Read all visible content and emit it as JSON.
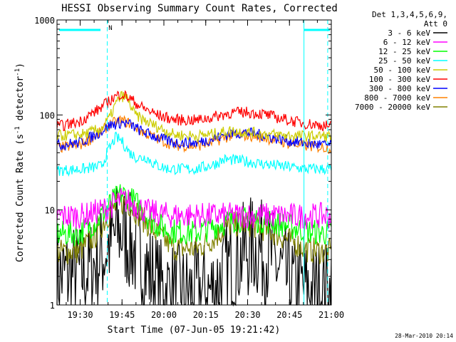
{
  "chart_data": {
    "type": "line",
    "title": "HESSI Observing Summary Count Rates, Corrected",
    "xlabel": "Start Time (07-Jun-05 19:21:42)",
    "ylabel_main": "Corrected Count Rate (s",
    "ylabel_sup1": "-1",
    "ylabel_mid": " detector",
    "ylabel_sup2": "-1",
    "ylabel_end": ")",
    "y_scale": "log",
    "ylim": [
      1,
      1000
    ],
    "xlim": [
      "19:21:42",
      "21:00:00"
    ],
    "x_ticks": [
      "19:30",
      "19:45",
      "20:00",
      "20:15",
      "20:30",
      "20:45",
      "21:00"
    ],
    "y_ticks": [
      "1",
      "10",
      "100",
      "1000"
    ],
    "legend_header": [
      "Det 1,3,4,5,6,9,",
      "Att 0"
    ],
    "legend_position": "right-outside",
    "footer_date": "28-Mar-2010 20:14",
    "night_flag_label": "N",
    "series": [
      {
        "name": "3 - 6 keV",
        "color": "#000000",
        "points": [
          [
            0,
            2.0
          ],
          [
            10,
            2.2
          ],
          [
            16,
            3.2
          ],
          [
            22,
            6.0
          ],
          [
            24,
            5.5
          ],
          [
            30,
            3.0
          ],
          [
            37,
            1.5
          ],
          [
            45,
            1.3
          ],
          [
            55,
            1.4
          ],
          [
            63,
            2.8
          ],
          [
            70,
            4.2
          ],
          [
            76,
            3.3
          ],
          [
            84,
            1.6
          ],
          [
            92,
            1.4
          ],
          [
            98,
            1.4
          ]
        ]
      },
      {
        "name": "6 - 12 keV",
        "color": "#ff00ff",
        "points": [
          [
            0,
            8.6
          ],
          [
            10,
            8.7
          ],
          [
            18,
            10.5
          ],
          [
            23,
            12.8
          ],
          [
            26,
            12.2
          ],
          [
            32,
            9.6
          ],
          [
            40,
            8.8
          ],
          [
            55,
            8.7
          ],
          [
            70,
            8.8
          ],
          [
            85,
            8.6
          ],
          [
            98,
            8.7
          ]
        ]
      },
      {
        "name": "12 - 25 keV",
        "color": "#00ff00",
        "points": [
          [
            0,
            5.6
          ],
          [
            8,
            5.7
          ],
          [
            14,
            7.5
          ],
          [
            19,
            11.5
          ],
          [
            23,
            14.8
          ],
          [
            26,
            13.5
          ],
          [
            30,
            10.5
          ],
          [
            34,
            7.6
          ],
          [
            40,
            6.0
          ],
          [
            50,
            5.8
          ],
          [
            58,
            7.0
          ],
          [
            64,
            8.0
          ],
          [
            70,
            8.0
          ],
          [
            76,
            7.6
          ],
          [
            82,
            6.9
          ],
          [
            90,
            5.9
          ],
          [
            98,
            5.7
          ]
        ]
      },
      {
        "name": "25 - 50 keV",
        "color": "#00ffff",
        "points": [
          [
            0,
            26
          ],
          [
            10,
            27
          ],
          [
            16,
            29
          ],
          [
            18,
            40
          ],
          [
            21,
            58
          ],
          [
            23,
            54
          ],
          [
            26,
            40
          ],
          [
            29,
            35
          ],
          [
            32,
            36
          ],
          [
            35,
            30
          ],
          [
            40,
            27
          ],
          [
            50,
            27
          ],
          [
            56,
            30
          ],
          [
            60,
            34
          ],
          [
            66,
            33
          ],
          [
            72,
            31
          ],
          [
            80,
            29
          ],
          [
            90,
            27
          ],
          [
            98,
            27
          ]
        ]
      },
      {
        "name": "50 - 100 keV",
        "color": "#cccc00",
        "points": [
          [
            0,
            60
          ],
          [
            10,
            63
          ],
          [
            16,
            72
          ],
          [
            19,
            95
          ],
          [
            21,
            130
          ],
          [
            23,
            158
          ],
          [
            25,
            152
          ],
          [
            28,
            100
          ],
          [
            31,
            88
          ],
          [
            36,
            75
          ],
          [
            42,
            62
          ],
          [
            50,
            60
          ],
          [
            56,
            63
          ],
          [
            62,
            68
          ],
          [
            68,
            66
          ],
          [
            74,
            63
          ],
          [
            82,
            61
          ],
          [
            90,
            60
          ],
          [
            98,
            60
          ]
        ]
      },
      {
        "name": "100 - 300 keV",
        "color": "#ff0000",
        "points": [
          [
            0,
            75
          ],
          [
            8,
            85
          ],
          [
            15,
            115
          ],
          [
            20,
            150
          ],
          [
            23,
            168
          ],
          [
            26,
            150
          ],
          [
            30,
            122
          ],
          [
            36,
            100
          ],
          [
            42,
            89
          ],
          [
            50,
            88
          ],
          [
            56,
            95
          ],
          [
            62,
            105
          ],
          [
            68,
            107
          ],
          [
            74,
            102
          ],
          [
            80,
            92
          ],
          [
            88,
            82
          ],
          [
            98,
            76
          ]
        ]
      },
      {
        "name": "300 - 800 keV",
        "color": "#0000ff",
        "points": [
          [
            0,
            48
          ],
          [
            8,
            51
          ],
          [
            14,
            62
          ],
          [
            19,
            78
          ],
          [
            23,
            83
          ],
          [
            26,
            80
          ],
          [
            30,
            68
          ],
          [
            36,
            58
          ],
          [
            42,
            51
          ],
          [
            50,
            51
          ],
          [
            56,
            56
          ],
          [
            62,
            64
          ],
          [
            68,
            65
          ],
          [
            74,
            61
          ],
          [
            82,
            54
          ],
          [
            90,
            50
          ],
          [
            98,
            48
          ]
        ]
      },
      {
        "name": "800 - 7000 keV",
        "color": "#ff8000",
        "points": [
          [
            0,
            45
          ],
          [
            8,
            48
          ],
          [
            14,
            60
          ],
          [
            19,
            80
          ],
          [
            23,
            87
          ],
          [
            26,
            82
          ],
          [
            30,
            68
          ],
          [
            36,
            56
          ],
          [
            42,
            48
          ],
          [
            50,
            47
          ],
          [
            56,
            52
          ],
          [
            62,
            60
          ],
          [
            68,
            61
          ],
          [
            74,
            58
          ],
          [
            82,
            51
          ],
          [
            90,
            47
          ],
          [
            98,
            45
          ]
        ]
      },
      {
        "name": "7000 - 20000 keV",
        "color": "#808000",
        "points": [
          [
            0,
            3.6
          ],
          [
            8,
            3.7
          ],
          [
            14,
            5.5
          ],
          [
            19,
            9.5
          ],
          [
            23,
            12.0
          ],
          [
            26,
            11.5
          ],
          [
            30,
            8.5
          ],
          [
            36,
            5.5
          ],
          [
            42,
            4.0
          ],
          [
            50,
            3.9
          ],
          [
            56,
            5.0
          ],
          [
            62,
            7.0
          ],
          [
            68,
            7.2
          ],
          [
            74,
            6.4
          ],
          [
            82,
            5.0
          ],
          [
            90,
            3.8
          ],
          [
            98,
            3.6
          ]
        ]
      }
    ],
    "vertical_markers_color": "#00ffff"
  }
}
